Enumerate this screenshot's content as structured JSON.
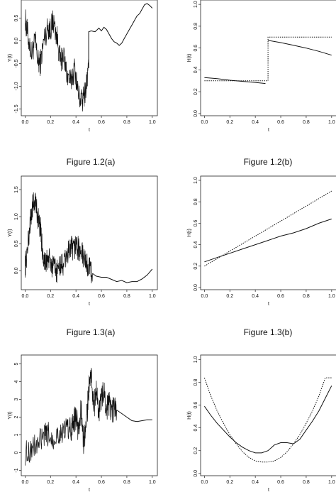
{
  "captions": [
    "Figure  1.2(a)",
    "Figure  1.2(b)",
    "Figure  1.3(a)",
    "Figure  1.3(b)"
  ],
  "chart_data": [
    {
      "id": "p12a",
      "type": "line",
      "xlabel": "t",
      "ylabel": "Y(t)",
      "xlim": [
        -0.03,
        1.04
      ],
      "ylim": [
        -1.65,
        0.9
      ],
      "xticks": [
        "0.0",
        "0.2",
        "0.4",
        "0.6",
        "0.8",
        "1.0"
      ],
      "xtickv": [
        0,
        0.2,
        0.4,
        0.6,
        0.8,
        1.0
      ],
      "yticks": [
        "-1.5",
        "-1.0",
        "-0.5",
        "0.0",
        "0.5"
      ],
      "ytickv": [
        -1.5,
        -1.0,
        -0.5,
        0,
        0.5
      ],
      "series": [
        {
          "style": "solid",
          "noisy": true,
          "x": [
            0,
            0.02,
            0.05,
            0.08,
            0.1,
            0.12,
            0.15,
            0.18,
            0.2,
            0.22,
            0.25,
            0.28,
            0.3,
            0.33,
            0.36,
            0.39,
            0.42,
            0.45,
            0.48,
            0.5
          ],
          "y": [
            0.5,
            0.15,
            -0.3,
            0.0,
            -0.45,
            -0.5,
            0.05,
            0.3,
            0.25,
            0.45,
            0.1,
            -0.5,
            -0.3,
            -0.75,
            -0.9,
            -0.6,
            -1.2,
            -1.35,
            -1.0,
            -0.6
          ]
        },
        {
          "style": "solid",
          "noisy": false,
          "x": [
            0.5,
            0.5,
            0.52,
            0.55,
            0.58,
            0.6,
            0.62,
            0.64,
            0.66,
            0.68,
            0.7,
            0.72,
            0.74,
            0.76,
            0.78,
            0.8,
            0.82,
            0.84,
            0.86,
            0.88,
            0.9,
            0.92,
            0.94,
            0.96,
            0.98,
            1.0
          ],
          "y": [
            -0.6,
            0.2,
            0.22,
            0.2,
            0.28,
            0.22,
            0.3,
            0.25,
            0.15,
            0.05,
            -0.02,
            -0.05,
            -0.1,
            -0.05,
            0.05,
            0.15,
            0.25,
            0.35,
            0.45,
            0.55,
            0.6,
            0.7,
            0.8,
            0.82,
            0.78,
            0.72
          ]
        }
      ],
      "hline": 0.9
    },
    {
      "id": "p12b",
      "type": "line",
      "xlabel": "t",
      "ylabel": "H(t)",
      "xlim": [
        -0.03,
        1.04
      ],
      "ylim": [
        -0.02,
        1.04
      ],
      "xticks": [
        "0.0",
        "0.2",
        "0.4",
        "0.6",
        "0.8",
        "1.0"
      ],
      "xtickv": [
        0,
        0.2,
        0.4,
        0.6,
        0.8,
        1.0
      ],
      "yticks": [
        "0.0",
        "0.2",
        "0.4",
        "0.6",
        "0.8",
        "1.0"
      ],
      "ytickv": [
        0,
        0.2,
        0.4,
        0.6,
        0.8,
        1.0
      ],
      "series": [
        {
          "style": "solid",
          "noisy": false,
          "x": [
            0.0,
            0.1,
            0.2,
            0.3,
            0.4,
            0.48
          ],
          "y": [
            0.33,
            0.32,
            0.305,
            0.295,
            0.285,
            0.275
          ]
        },
        {
          "style": "solid",
          "noisy": false,
          "x": [
            0.5,
            0.6,
            0.7,
            0.8,
            0.9,
            1.0
          ],
          "y": [
            0.67,
            0.65,
            0.625,
            0.6,
            0.57,
            0.535
          ]
        },
        {
          "style": "dotted",
          "noisy": false,
          "x": [
            0.0,
            0.5,
            0.5,
            1.0
          ],
          "y": [
            0.3,
            0.3,
            0.7,
            0.7
          ]
        }
      ]
    },
    {
      "id": "p13a",
      "type": "line",
      "xlabel": "t",
      "ylabel": "Y(t)",
      "xlim": [
        -0.03,
        1.04
      ],
      "ylim": [
        -0.35,
        1.75
      ],
      "xticks": [
        "0.0",
        "0.2",
        "0.4",
        "0.6",
        "0.8",
        "1.0"
      ],
      "xtickv": [
        0,
        0.2,
        0.4,
        0.6,
        0.8,
        1.0
      ],
      "yticks": [
        "0.0",
        "0.5",
        "1.0",
        "1.5"
      ],
      "ytickv": [
        0,
        0.5,
        1.0,
        1.5
      ],
      "series": [
        {
          "style": "solid",
          "noisy": true,
          "x": [
            0,
            0.02,
            0.04,
            0.06,
            0.08,
            0.1,
            0.12,
            0.14,
            0.16,
            0.18,
            0.2,
            0.22,
            0.25,
            0.28,
            0.3,
            0.33,
            0.36,
            0.38,
            0.4,
            0.42,
            0.45,
            0.48,
            0.5,
            0.53
          ],
          "y": [
            0.1,
            0.4,
            0.9,
            1.2,
            1.3,
            1.0,
            0.8,
            0.3,
            0.1,
            0.25,
            0.15,
            0.05,
            0.0,
            0.1,
            0.1,
            0.3,
            0.45,
            0.35,
            0.5,
            0.4,
            0.3,
            0.15,
            0.05,
            -0.05
          ]
        },
        {
          "style": "solid",
          "noisy": false,
          "x": [
            0.53,
            0.56,
            0.6,
            0.64,
            0.68,
            0.72,
            0.76,
            0.8,
            0.84,
            0.88,
            0.92,
            0.96,
            1.0
          ],
          "y": [
            -0.05,
            -0.1,
            -0.12,
            -0.12,
            -0.16,
            -0.2,
            -0.18,
            -0.22,
            -0.2,
            -0.2,
            -0.15,
            -0.08,
            0.03
          ]
        }
      ]
    },
    {
      "id": "p13b",
      "type": "line",
      "xlabel": "t",
      "ylabel": "H(t)",
      "xlim": [
        -0.03,
        1.04
      ],
      "ylim": [
        -0.02,
        1.04
      ],
      "xticks": [
        "0.0",
        "0.2",
        "0.4",
        "0.6",
        "0.8",
        "1.0"
      ],
      "xtickv": [
        0,
        0.2,
        0.4,
        0.6,
        0.8,
        1.0
      ],
      "yticks": [
        "0.0",
        "0.2",
        "0.4",
        "0.6",
        "0.8",
        "1.0"
      ],
      "ytickv": [
        0,
        0.2,
        0.4,
        0.6,
        0.8,
        1.0
      ],
      "series": [
        {
          "style": "solid",
          "noisy": false,
          "x": [
            0.0,
            0.1,
            0.2,
            0.3,
            0.4,
            0.5,
            0.6,
            0.7,
            0.8,
            0.9,
            1.0
          ],
          "y": [
            0.24,
            0.28,
            0.32,
            0.36,
            0.4,
            0.44,
            0.48,
            0.51,
            0.55,
            0.6,
            0.64
          ]
        },
        {
          "style": "dotted",
          "noisy": false,
          "x": [
            0.0,
            1.0
          ],
          "y": [
            0.2,
            0.9
          ]
        }
      ]
    },
    {
      "id": "p14a",
      "type": "line",
      "xlabel": "t",
      "ylabel": "Y(t)",
      "xlim": [
        -0.03,
        1.04
      ],
      "ylim": [
        -1.3,
        5.5
      ],
      "xticks": [
        "0.0",
        "0.2",
        "0.4",
        "0.6",
        "0.8",
        "1.0"
      ],
      "xtickv": [
        0,
        0.2,
        0.4,
        0.6,
        0.8,
        1.0
      ],
      "yticks": [
        "-1",
        "0",
        "1",
        "2",
        "3",
        "4",
        "5"
      ],
      "ytickv": [
        -1,
        0,
        1,
        2,
        3,
        4,
        5
      ],
      "series": [
        {
          "style": "solid",
          "noisy": true,
          "x": [
            0,
            0.05,
            0.1,
            0.15,
            0.18,
            0.22,
            0.26,
            0.3,
            0.33,
            0.36,
            0.38,
            0.4,
            0.42,
            0.44,
            0.46,
            0.48,
            0.5,
            0.52,
            0.54,
            0.56,
            0.58,
            0.6,
            0.62,
            0.64,
            0.66,
            0.68,
            0.7,
            0.72
          ],
          "y": [
            0.0,
            0.2,
            0.5,
            0.9,
            1.0,
            0.8,
            1.1,
            1.0,
            1.5,
            1.2,
            1.8,
            2.0,
            1.2,
            2.5,
            0.5,
            1.5,
            3.5,
            4.5,
            2.5,
            3.5,
            2.2,
            3.0,
            3.5,
            2.5,
            2.8,
            2.2,
            2.5,
            2.4
          ]
        },
        {
          "style": "solid",
          "noisy": false,
          "x": [
            0.72,
            0.76,
            0.8,
            0.84,
            0.88,
            0.92,
            0.96,
            1.0
          ],
          "y": [
            2.4,
            2.2,
            2.0,
            1.8,
            1.75,
            1.8,
            1.85,
            1.85
          ]
        }
      ]
    },
    {
      "id": "p14b",
      "type": "line",
      "xlabel": "t",
      "ylabel": "H(t)",
      "xlim": [
        -0.03,
        1.04
      ],
      "ylim": [
        -0.02,
        1.04
      ],
      "xticks": [
        "0.0",
        "0.2",
        "0.4",
        "0.6",
        "0.8",
        "1.0"
      ],
      "xtickv": [
        0,
        0.2,
        0.4,
        0.6,
        0.8,
        1.0
      ],
      "yticks": [
        "0.0",
        "0.2",
        "0.4",
        "0.6",
        "0.8",
        "1.0"
      ],
      "ytickv": [
        0,
        0.2,
        0.4,
        0.6,
        0.8,
        1.0
      ],
      "series": [
        {
          "style": "solid",
          "noisy": false,
          "x": [
            0.0,
            0.05,
            0.1,
            0.15,
            0.2,
            0.25,
            0.3,
            0.35,
            0.4,
            0.45,
            0.5,
            0.55,
            0.6,
            0.65,
            0.7,
            0.75,
            0.8,
            0.85,
            0.9,
            0.95,
            1.0
          ],
          "y": [
            0.59,
            0.51,
            0.44,
            0.38,
            0.32,
            0.27,
            0.23,
            0.2,
            0.18,
            0.18,
            0.2,
            0.25,
            0.27,
            0.27,
            0.26,
            0.3,
            0.38,
            0.46,
            0.55,
            0.66,
            0.77
          ]
        },
        {
          "style": "dotted",
          "noisy": false,
          "x": [
            0.0,
            0.05,
            0.1,
            0.15,
            0.2,
            0.25,
            0.3,
            0.35,
            0.4,
            0.45,
            0.5,
            0.55,
            0.6,
            0.65,
            0.7,
            0.75,
            0.8,
            0.85,
            0.9,
            0.95,
            1.0
          ],
          "y": [
            0.84,
            0.68,
            0.55,
            0.44,
            0.34,
            0.26,
            0.19,
            0.14,
            0.11,
            0.1,
            0.1,
            0.11,
            0.14,
            0.19,
            0.26,
            0.34,
            0.44,
            0.55,
            0.68,
            0.84,
            0.84
          ]
        }
      ]
    }
  ]
}
